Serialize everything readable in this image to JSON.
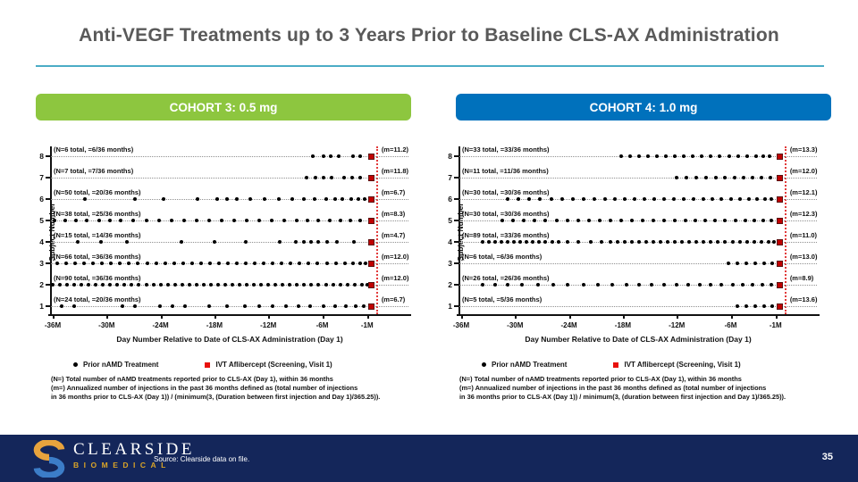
{
  "slide": {
    "title": "Anti-VEGF Treatments up to 3 Years Prior to Baseline CLS-AX Administration",
    "page_number": "35",
    "source_note": "Source: Clearside data on file.",
    "logo": {
      "name": "CLEARSIDE",
      "sub": "BIOMEDICAL"
    },
    "colors": {
      "title_gray": "#595959",
      "accent_rule": "#4BACC6",
      "cohort3_green": "#8DC63F",
      "cohort4_blue": "#0071BC",
      "footer_navy": "#14265A",
      "marker_black": "#000000",
      "marker_red": "#C00000",
      "baseline_red": "#E23B3B"
    }
  },
  "chart_data": [
    {
      "type": "scatter",
      "title": "COHORT 3: 0.5 mg",
      "header_color": "#8DC63F",
      "xlabel": "Day Number Relative to Date of CLS-AX Administration (Day 1)",
      "ylabel": "Subject Number",
      "x_ticks": [
        "-36M",
        "-30M",
        "-24M",
        "-18M",
        "-12M",
        "-6M",
        "-1M"
      ],
      "x_tick_months": [
        -36,
        -30,
        -24,
        -18,
        -12,
        -6,
        -1
      ],
      "xlim": [
        -36.2,
        3.6
      ],
      "ylim": [
        1,
        8
      ],
      "baseline_month": 0,
      "grid": "dotted-row-lines",
      "legend_position": "below",
      "legend": [
        {
          "label": "Prior nAMD Treatment",
          "marker": "dot",
          "color": "#000000"
        },
        {
          "label": "IVT Aflibercept (Screening, Visit 1)",
          "marker": "square",
          "color": "#E8110D"
        }
      ],
      "footnotes": [
        "(N=) Total number of nAMD treatments reported prior to CLS-AX (Day 1), within 36 months",
        "(m=) Annualized number of injections in the past 36 months defined as (total number of injections",
        "in 36 months prior to CLS-AX (Day 1)) / (minimum(3, (Duration between first injection and Day 1)/365.25))."
      ],
      "rows": [
        {
          "subject": 8,
          "annotation": "(N=6 total, =6/36 months)",
          "m_label": "(m=11.2)",
          "square": -0.55,
          "dots": [
            -7.0,
            -5.9,
            -5.1,
            -4.2,
            -2.6,
            -1.8
          ]
        },
        {
          "subject": 7,
          "annotation": "(N=7 total, =7/36 months)",
          "m_label": "(m=11.8)",
          "square": -0.55,
          "dots": [
            -7.7,
            -6.7,
            -5.9,
            -5.0,
            -3.6,
            -2.7,
            -1.8
          ]
        },
        {
          "subject": 6,
          "annotation": "(N=50 total, =20/36 months)",
          "m_label": "(m=6.7)",
          "square": -0.55,
          "dots": [
            -32.4,
            -26.8,
            -23.7,
            -19.9,
            -17.7,
            -16.6,
            -15.5,
            -14.0,
            -12.4,
            -10.8,
            -9.3,
            -8.0,
            -6.8,
            -5.6,
            -4.6,
            -3.8,
            -2.8,
            -2.0,
            -1.3
          ]
        },
        {
          "subject": 5,
          "annotation": "(N=38 total, =25/36 months)",
          "m_label": "(m=8.3)",
          "square": -0.55,
          "dots": [
            -35.8,
            -34.6,
            -33.4,
            -32.2,
            -30.8,
            -29.6,
            -28.4,
            -27.0,
            -25.6,
            -24.2,
            -22.8,
            -21.4,
            -20.0,
            -18.6,
            -17.2,
            -15.8,
            -14.4,
            -13.0,
            -11.6,
            -10.2,
            -8.8,
            -7.6,
            -6.4,
            -5.2,
            -4.0,
            -2.9,
            -1.8
          ]
        },
        {
          "subject": 4,
          "annotation": "(N=15 total, =14/36 months)",
          "m_label": "(m=4.7)",
          "square": -0.55,
          "dots": [
            -33.2,
            -30.6,
            -27.7,
            -21.7,
            -18.0,
            -14.5,
            -10.7,
            -8.9,
            -8.0,
            -7.2,
            -6.4,
            -5.5,
            -4.4,
            -2.5
          ]
        },
        {
          "subject": 3,
          "annotation": "(N=66 total, =36/36 months)",
          "m_label": "(m=12.0)",
          "square": -0.55,
          "dots": [
            -35.5,
            -34.5,
            -33.5,
            -32.5,
            -31.5,
            -30.5,
            -29.5,
            -28.5,
            -27.5,
            -26.5,
            -25.5,
            -24.5,
            -23.5,
            -22.5,
            -21.5,
            -20.5,
            -19.5,
            -18.5,
            -17.5,
            -16.5,
            -15.5,
            -14.5,
            -13.5,
            -12.5,
            -11.5,
            -10.5,
            -9.5,
            -8.5,
            -7.5,
            -6.5,
            -5.5,
            -4.5,
            -3.5,
            -2.6,
            -1.8,
            -1.2
          ]
        },
        {
          "subject": 2,
          "annotation": "(N=90 total, =36/36 months)",
          "m_label": "(m=12.0)",
          "square": -0.55,
          "dots": [
            -36.0,
            -35.2,
            -34.4,
            -33.6,
            -32.8,
            -32.0,
            -31.2,
            -30.4,
            -29.6,
            -28.8,
            -28.0,
            -27.2,
            -26.4,
            -25.6,
            -24.8,
            -24.0,
            -23.2,
            -22.4,
            -21.6,
            -20.8,
            -20.0,
            -19.2,
            -18.4,
            -17.6,
            -16.8,
            -16.0,
            -15.2,
            -14.4,
            -13.6,
            -12.8,
            -12.0,
            -11.2,
            -10.4,
            -9.6,
            -8.8,
            -8.0,
            -7.2,
            -6.4,
            -5.6,
            -4.8,
            -4.0,
            -3.2,
            -2.4,
            -1.6,
            -1.0
          ]
        },
        {
          "subject": 1,
          "annotation": "(N=24 total, =20/36 months)",
          "m_label": "(m=6.7)",
          "square": -0.55,
          "dots": [
            -35.0,
            -33.6,
            -28.2,
            -26.8,
            -24.1,
            -22.7,
            -21.3,
            -18.6,
            -16.6,
            -14.6,
            -13.0,
            -11.5,
            -10.0,
            -8.6,
            -7.3,
            -5.9,
            -4.6,
            -3.4,
            -2.3,
            -1.4
          ]
        }
      ]
    },
    {
      "type": "scatter",
      "title": "COHORT 4: 1.0 mg",
      "header_color": "#0071BC",
      "xlabel": "Day Number Relative to Date of CLS-AX Administration (Day 1)",
      "ylabel": "Subject Number",
      "x_ticks": [
        "-36M",
        "-30M",
        "-24M",
        "-18M",
        "-12M",
        "-6M",
        "-1M"
      ],
      "x_tick_months": [
        -36,
        -30,
        -24,
        -18,
        -12,
        -6,
        -1
      ],
      "xlim": [
        -36.2,
        3.6
      ],
      "ylim": [
        1,
        8
      ],
      "baseline_month": 0,
      "grid": "dotted-row-lines",
      "legend_position": "below",
      "legend": [
        {
          "label": "Prior nAMD Treatment",
          "marker": "dot",
          "color": "#000000"
        },
        {
          "label": "IVT Aflibercept (Screening, Visit 1)",
          "marker": "square",
          "color": "#E8110D"
        }
      ],
      "footnotes": [
        "(N=) Total number of nAMD treatments reported prior to CLS-AX (Day 1), within 36 months",
        "(m=) Annualized number of injections in the past 36 months defined as (total number of injections",
        "in 36 months prior to CLS-AX (Day 1)) / minimum(3, (duration between first injection and Day 1)/365.25))."
      ],
      "rows": [
        {
          "subject": 8,
          "annotation": "(N=33 total, =33/36 months)",
          "m_label": "(m=13.3)",
          "square": -0.55,
          "dots": [
            -18.2,
            -17.2,
            -16.2,
            -15.2,
            -14.2,
            -13.2,
            -12.2,
            -11.2,
            -10.2,
            -9.2,
            -8.2,
            -7.2,
            -6.2,
            -5.2,
            -4.2,
            -3.2,
            -2.4,
            -1.7
          ]
        },
        {
          "subject": 7,
          "annotation": "(N=11 total, =11/36 months)",
          "m_label": "(m=12.0)",
          "square": -0.55,
          "dots": [
            -12.0,
            -10.9,
            -9.8,
            -8.7,
            -7.6,
            -6.6,
            -5.6,
            -4.6,
            -3.6,
            -2.6,
            -1.6
          ]
        },
        {
          "subject": 6,
          "annotation": "(N=30 total, =30/36 months)",
          "m_label": "(m=12.1)",
          "square": -0.55,
          "dots": [
            -30.8,
            -29.6,
            -28.4,
            -27.2,
            -26.0,
            -24.8,
            -23.6,
            -22.4,
            -21.2,
            -20.0,
            -18.9,
            -17.8,
            -16.7,
            -15.6,
            -14.5,
            -13.4,
            -12.3,
            -11.2,
            -10.1,
            -9.0,
            -8.0,
            -7.0,
            -6.0,
            -5.0,
            -4.0,
            -3.1,
            -2.2,
            -1.5
          ]
        },
        {
          "subject": 5,
          "annotation": "(N=30 total, =30/36 months)",
          "m_label": "(m=12.3)",
          "square": -0.55,
          "dots": [
            -31.4,
            -30.2,
            -29.0,
            -27.8,
            -26.6,
            -25.4,
            -24.2,
            -23.0,
            -21.8,
            -20.6,
            -19.4,
            -18.2,
            -17.0,
            -15.8,
            -14.6,
            -13.4,
            -12.2,
            -11.0,
            -9.9,
            -8.8,
            -7.7,
            -6.6,
            -5.5,
            -4.4,
            -3.4,
            -2.4,
            -1.5
          ]
        },
        {
          "subject": 4,
          "annotation": "(N=89 total, =33/36 months)",
          "m_label": "(m=11.0)",
          "square": -0.55,
          "dots": [
            -33.6,
            -32.9,
            -32.2,
            -31.5,
            -30.8,
            -30.1,
            -29.4,
            -28.7,
            -28.0,
            -27.3,
            -26.6,
            -25.9,
            -25.2,
            -24.2,
            -23.0,
            -21.6,
            -20.4,
            -19.4,
            -18.6,
            -17.8,
            -17.0,
            -16.2,
            -15.4,
            -14.6,
            -13.8,
            -13.0,
            -12.2,
            -11.4,
            -10.6,
            -9.8,
            -9.0,
            -8.2,
            -7.4,
            -6.6,
            -5.8,
            -5.0,
            -4.2,
            -3.4,
            -2.6,
            -1.8,
            -1.2
          ]
        },
        {
          "subject": 3,
          "annotation": "(N=6 total, =6/36 months)",
          "m_label": "(m=13.0)",
          "square": -0.55,
          "dots": [
            -6.3,
            -5.3,
            -4.3,
            -3.3,
            -2.3,
            -1.4
          ]
        },
        {
          "subject": 2,
          "annotation": "(N=26 total, =26/36 months)",
          "m_label": "(m=8.9)",
          "square": -0.55,
          "dots": [
            -33.6,
            -32.2,
            -30.8,
            -29.2,
            -27.4,
            -25.8,
            -24.2,
            -22.4,
            -20.8,
            -19.2,
            -17.6,
            -16.2,
            -14.8,
            -13.4,
            -12.0,
            -10.7,
            -9.4,
            -8.2,
            -7.0,
            -5.8,
            -4.7,
            -3.6,
            -2.5,
            -1.5
          ]
        },
        {
          "subject": 1,
          "annotation": "(N=5 total, =5/36 months)",
          "m_label": "(m=13.6)",
          "square": -0.55,
          "dots": [
            -5.3,
            -4.3,
            -3.3,
            -2.3,
            -1.4
          ]
        }
      ]
    }
  ]
}
